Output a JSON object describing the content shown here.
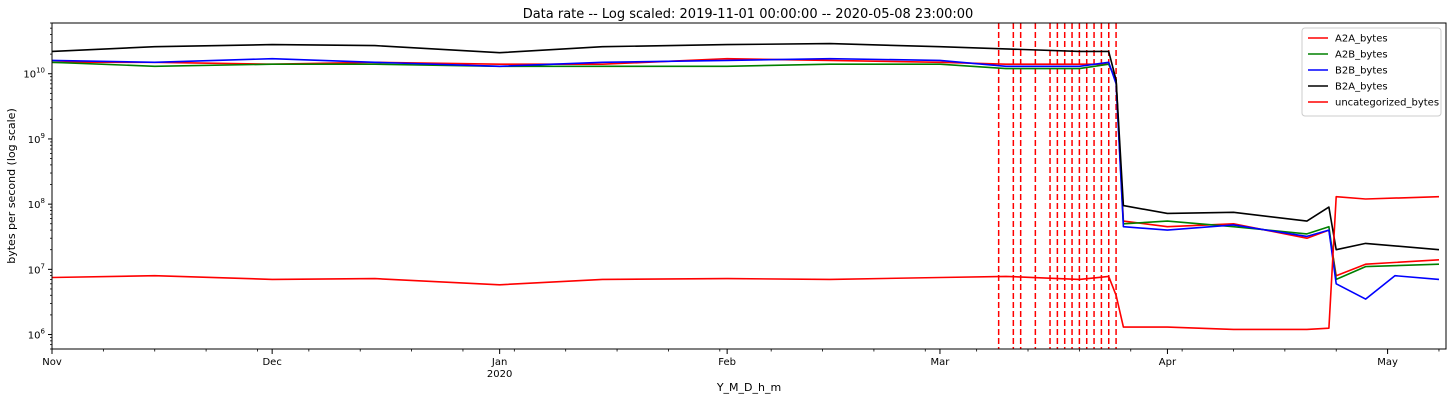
{
  "chart_data": {
    "type": "line",
    "title": "Data rate -- Log scaled: 2019-11-01 00:00:00 -- 2020-05-08 23:00:00",
    "xlabel": "Y_M_D_h_m",
    "ylabel": "bytes per second (log scale)",
    "y_scale": "log",
    "ylim": [
      600000,
      60000000000
    ],
    "xlim": [
      "2019-11-01",
      "2020-05-08"
    ],
    "y_ticks": [
      {
        "value": 1000000,
        "label": "10^6"
      },
      {
        "value": 10000000,
        "label": "10^7"
      },
      {
        "value": 100000000,
        "label": "10^8"
      },
      {
        "value": 1000000000,
        "label": "10^9"
      },
      {
        "value": 10000000000,
        "label": "10^10"
      }
    ],
    "x_ticks": [
      {
        "date": "2019-11-01",
        "label": "Nov",
        "sublabel": ""
      },
      {
        "date": "2019-12-01",
        "label": "Dec",
        "sublabel": ""
      },
      {
        "date": "2020-01-01",
        "label": "Jan",
        "sublabel": "2020"
      },
      {
        "date": "2020-02-01",
        "label": "Feb",
        "sublabel": ""
      },
      {
        "date": "2020-03-01",
        "label": "Mar",
        "sublabel": ""
      },
      {
        "date": "2020-04-01",
        "label": "Apr",
        "sublabel": ""
      },
      {
        "date": "2020-05-01",
        "label": "May",
        "sublabel": ""
      }
    ],
    "legend_position": "top-right",
    "grid": false,
    "series": [
      {
        "name": "A2A_bytes",
        "color": "#ff0000",
        "points": [
          [
            "2019-11-01",
            15000000000
          ],
          [
            "2019-11-15",
            15000000000
          ],
          [
            "2019-12-01",
            14000000000
          ],
          [
            "2019-12-15",
            15000000000
          ],
          [
            "2020-01-01",
            14000000000
          ],
          [
            "2020-01-15",
            14000000000
          ],
          [
            "2020-02-01",
            17000000000
          ],
          [
            "2020-02-15",
            16000000000
          ],
          [
            "2020-03-01",
            15000000000
          ],
          [
            "2020-03-10",
            14000000000
          ],
          [
            "2020-03-20",
            14000000000
          ],
          [
            "2020-03-24",
            14000000000
          ],
          [
            "2020-03-25",
            8000000000
          ],
          [
            "2020-03-26",
            55000000
          ],
          [
            "2020-04-01",
            45000000
          ],
          [
            "2020-04-10",
            50000000
          ],
          [
            "2020-04-20",
            30000000
          ],
          [
            "2020-04-23",
            40000000
          ],
          [
            "2020-04-24",
            8000000
          ],
          [
            "2020-04-28",
            12000000
          ],
          [
            "2020-05-08",
            14000000
          ]
        ]
      },
      {
        "name": "A2B_bytes",
        "color": "#008000",
        "points": [
          [
            "2019-11-01",
            15000000000
          ],
          [
            "2019-11-15",
            13000000000
          ],
          [
            "2019-12-01",
            14000000000
          ],
          [
            "2019-12-15",
            14000000000
          ],
          [
            "2020-01-01",
            13000000000
          ],
          [
            "2020-01-15",
            13000000000
          ],
          [
            "2020-02-01",
            13000000000
          ],
          [
            "2020-02-15",
            14000000000
          ],
          [
            "2020-03-01",
            14000000000
          ],
          [
            "2020-03-10",
            12000000000
          ],
          [
            "2020-03-20",
            12000000000
          ],
          [
            "2020-03-24",
            14000000000
          ],
          [
            "2020-03-25",
            8000000000
          ],
          [
            "2020-03-26",
            50000000
          ],
          [
            "2020-04-01",
            55000000
          ],
          [
            "2020-04-10",
            45000000
          ],
          [
            "2020-04-20",
            35000000
          ],
          [
            "2020-04-23",
            45000000
          ],
          [
            "2020-04-24",
            7000000
          ],
          [
            "2020-04-28",
            11000000
          ],
          [
            "2020-05-08",
            12000000
          ]
        ]
      },
      {
        "name": "B2B_bytes",
        "color": "#0000ff",
        "points": [
          [
            "2019-11-01",
            16000000000
          ],
          [
            "2019-11-15",
            15000000000
          ],
          [
            "2019-12-01",
            17000000000
          ],
          [
            "2019-12-15",
            15000000000
          ],
          [
            "2020-01-01",
            13000000000
          ],
          [
            "2020-01-15",
            15000000000
          ],
          [
            "2020-02-01",
            16000000000
          ],
          [
            "2020-02-15",
            17000000000
          ],
          [
            "2020-03-01",
            16000000000
          ],
          [
            "2020-03-10",
            13000000000
          ],
          [
            "2020-03-20",
            13000000000
          ],
          [
            "2020-03-24",
            15000000000
          ],
          [
            "2020-03-25",
            7000000000
          ],
          [
            "2020-03-26",
            45000000
          ],
          [
            "2020-04-01",
            40000000
          ],
          [
            "2020-04-10",
            48000000
          ],
          [
            "2020-04-20",
            32000000
          ],
          [
            "2020-04-23",
            40000000
          ],
          [
            "2020-04-24",
            6000000
          ],
          [
            "2020-04-28",
            3500000
          ],
          [
            "2020-05-02",
            8000000
          ],
          [
            "2020-05-08",
            7000000
          ]
        ]
      },
      {
        "name": "B2A_bytes",
        "color": "#000000",
        "points": [
          [
            "2019-11-01",
            22000000000
          ],
          [
            "2019-11-15",
            26000000000
          ],
          [
            "2019-12-01",
            28000000000
          ],
          [
            "2019-12-15",
            27000000000
          ],
          [
            "2020-01-01",
            21000000000
          ],
          [
            "2020-01-15",
            26000000000
          ],
          [
            "2020-02-01",
            28000000000
          ],
          [
            "2020-02-15",
            29000000000
          ],
          [
            "2020-03-01",
            26000000000
          ],
          [
            "2020-03-10",
            24000000000
          ],
          [
            "2020-03-20",
            22000000000
          ],
          [
            "2020-03-24",
            22000000000
          ],
          [
            "2020-03-25",
            8000000000
          ],
          [
            "2020-03-26",
            95000000
          ],
          [
            "2020-04-01",
            72000000
          ],
          [
            "2020-04-10",
            75000000
          ],
          [
            "2020-04-20",
            55000000
          ],
          [
            "2020-04-23",
            90000000
          ],
          [
            "2020-04-24",
            20000000
          ],
          [
            "2020-04-28",
            25000000
          ],
          [
            "2020-05-08",
            20000000
          ]
        ]
      },
      {
        "name": "uncategorized_bytes",
        "color": "#ff0000",
        "points": [
          [
            "2019-11-01",
            7500000
          ],
          [
            "2019-11-15",
            8000000
          ],
          [
            "2019-12-01",
            7000000
          ],
          [
            "2019-12-15",
            7200000
          ],
          [
            "2020-01-01",
            5800000
          ],
          [
            "2020-01-15",
            7000000
          ],
          [
            "2020-02-01",
            7200000
          ],
          [
            "2020-02-15",
            7000000
          ],
          [
            "2020-03-01",
            7500000
          ],
          [
            "2020-03-10",
            7800000
          ],
          [
            "2020-03-20",
            7000000
          ],
          [
            "2020-03-24",
            7800000
          ],
          [
            "2020-03-25",
            4000000
          ],
          [
            "2020-03-26",
            1300000
          ],
          [
            "2020-04-01",
            1300000
          ],
          [
            "2020-04-10",
            1200000
          ],
          [
            "2020-04-20",
            1200000
          ],
          [
            "2020-04-23",
            1250000
          ],
          [
            "2020-04-24",
            130000000
          ],
          [
            "2020-04-28",
            120000000
          ],
          [
            "2020-05-08",
            130000000
          ]
        ]
      }
    ],
    "vlines": {
      "color": "#ff0000",
      "style": "dashed",
      "dates": [
        "2020-03-09",
        "2020-03-11",
        "2020-03-12",
        "2020-03-14",
        "2020-03-16",
        "2020-03-17",
        "2020-03-18",
        "2020-03-19",
        "2020-03-20",
        "2020-03-21",
        "2020-03-22",
        "2020-03-23",
        "2020-03-24",
        "2020-03-25"
      ]
    }
  }
}
